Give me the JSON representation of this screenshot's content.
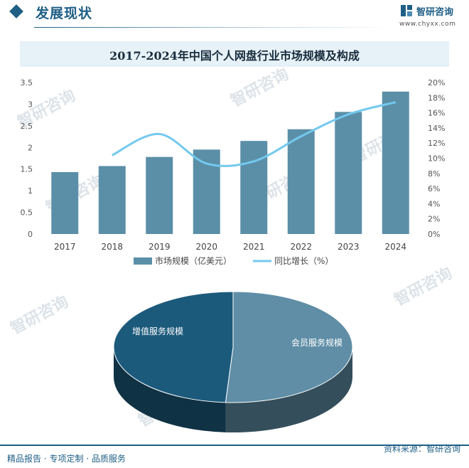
{
  "header": {
    "title": "发展现状",
    "brand_name": "智研咨询",
    "brand_url": "www.chyxx.com"
  },
  "watermark": {
    "text": "智研咨询"
  },
  "chart_data": [
    {
      "type": "bar",
      "title": "2017-2024年中国个人网盘行业市场规模及构成",
      "categories": [
        "2017",
        "2018",
        "2019",
        "2020",
        "2021",
        "2022",
        "2023",
        "2024"
      ],
      "series": [
        {
          "name": "市场规模（亿美元）",
          "type": "bar",
          "axis": "left",
          "values": [
            1.43,
            1.57,
            1.78,
            1.95,
            2.15,
            2.42,
            2.82,
            3.29
          ]
        },
        {
          "name": "同比增长（%）",
          "type": "line",
          "axis": "right",
          "values": [
            null,
            10.4,
            13.2,
            9.3,
            9.6,
            12.9,
            15.8,
            17.4
          ]
        }
      ],
      "ylim_left": [
        0,
        3.5
      ],
      "yticks_left": [
        "0",
        "0.5",
        "1",
        "1.5",
        "2",
        "2.5",
        "3",
        "3.5"
      ],
      "ylim_right": [
        0,
        20
      ],
      "yticks_right": [
        "0%",
        "2%",
        "4%",
        "6%",
        "8%",
        "10%",
        "12%",
        "14%",
        "16%",
        "18%",
        "20%"
      ],
      "legend_position": "bottom",
      "grid": false,
      "colors": {
        "bar": "#5b8fa8",
        "line": "#74c9ee"
      }
    },
    {
      "type": "pie",
      "style": "3d",
      "labels": [
        "增值服务规模",
        "会员服务规模"
      ],
      "values": [
        49,
        51
      ],
      "colors": [
        "#1c5a7c",
        "#5f8ea6"
      ]
    }
  ],
  "footer": {
    "left": "精品报告 · 专项定制 · 品质服务",
    "right": "资料来源：智研咨询"
  }
}
